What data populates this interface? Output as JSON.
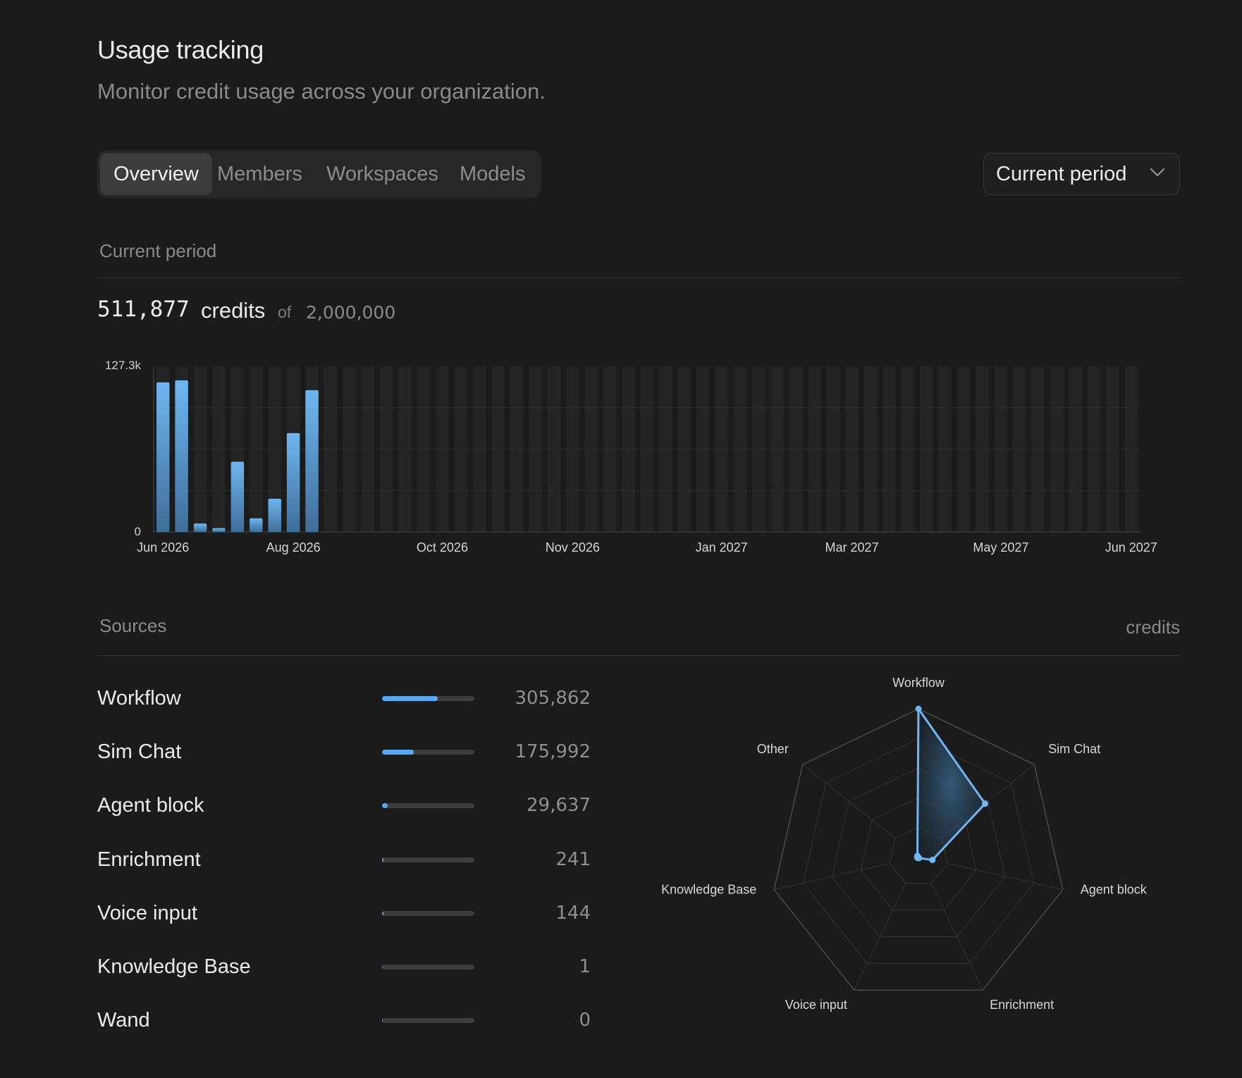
{
  "header": {
    "title": "Usage tracking",
    "subtitle": "Monitor credit usage across your organization."
  },
  "tabs": [
    {
      "label": "Overview",
      "active": true
    },
    {
      "label": "Members",
      "active": false
    },
    {
      "label": "Workspaces",
      "active": false
    },
    {
      "label": "Models",
      "active": false
    }
  ],
  "period_select": {
    "value": "Current period",
    "icon": "chevron-down-icon"
  },
  "summary": {
    "section_label": "Current period",
    "used": "511,877",
    "unit": "credits",
    "of": "of",
    "limit": "2,000,000"
  },
  "chart_data": [
    {
      "type": "bar",
      "y_max_label": "127.3k",
      "y_min_label": "0",
      "ylim": [
        0,
        127300
      ],
      "grid": true,
      "x_tick_labels": [
        "Jun 2026",
        "Aug 2026",
        "Oct 2026",
        "Nov 2026",
        "Jan 2027",
        "Mar 2027",
        "May 2027",
        "Jun 2027"
      ],
      "slot_count": 53,
      "values": [
        115000,
        116500,
        6500,
        3000,
        54000,
        10500,
        25500,
        76000,
        109000
      ],
      "colors": {
        "bar_top": "#6fb6f2",
        "bar_bottom": "#3f6e99",
        "slot": "#242424"
      }
    },
    {
      "type": "radar",
      "axes": [
        "Workflow",
        "Sim Chat",
        "Agent block",
        "Enrichment",
        "Voice input",
        "Knowledge Base",
        "Other"
      ],
      "values": [
        305862,
        175992,
        29637,
        241,
        144,
        1,
        0
      ],
      "max": 305862,
      "rings": 5,
      "color": "#6fb6f2"
    }
  ],
  "sources": {
    "section_label": "Sources",
    "unit_label": "credits",
    "items": [
      {
        "name": "Workflow",
        "value": "305,862",
        "fraction": 0.6
      },
      {
        "name": "Sim Chat",
        "value": "175,992",
        "fraction": 0.345
      },
      {
        "name": "Agent block",
        "value": "29,637",
        "fraction": 0.058
      },
      {
        "name": "Enrichment",
        "value": "241",
        "fraction": 0.012
      },
      {
        "name": "Voice input",
        "value": "144",
        "fraction": 0.012
      },
      {
        "name": "Knowledge Base",
        "value": "1",
        "fraction": 0.01
      },
      {
        "name": "Wand",
        "value": "0",
        "fraction": 0.01
      }
    ]
  }
}
